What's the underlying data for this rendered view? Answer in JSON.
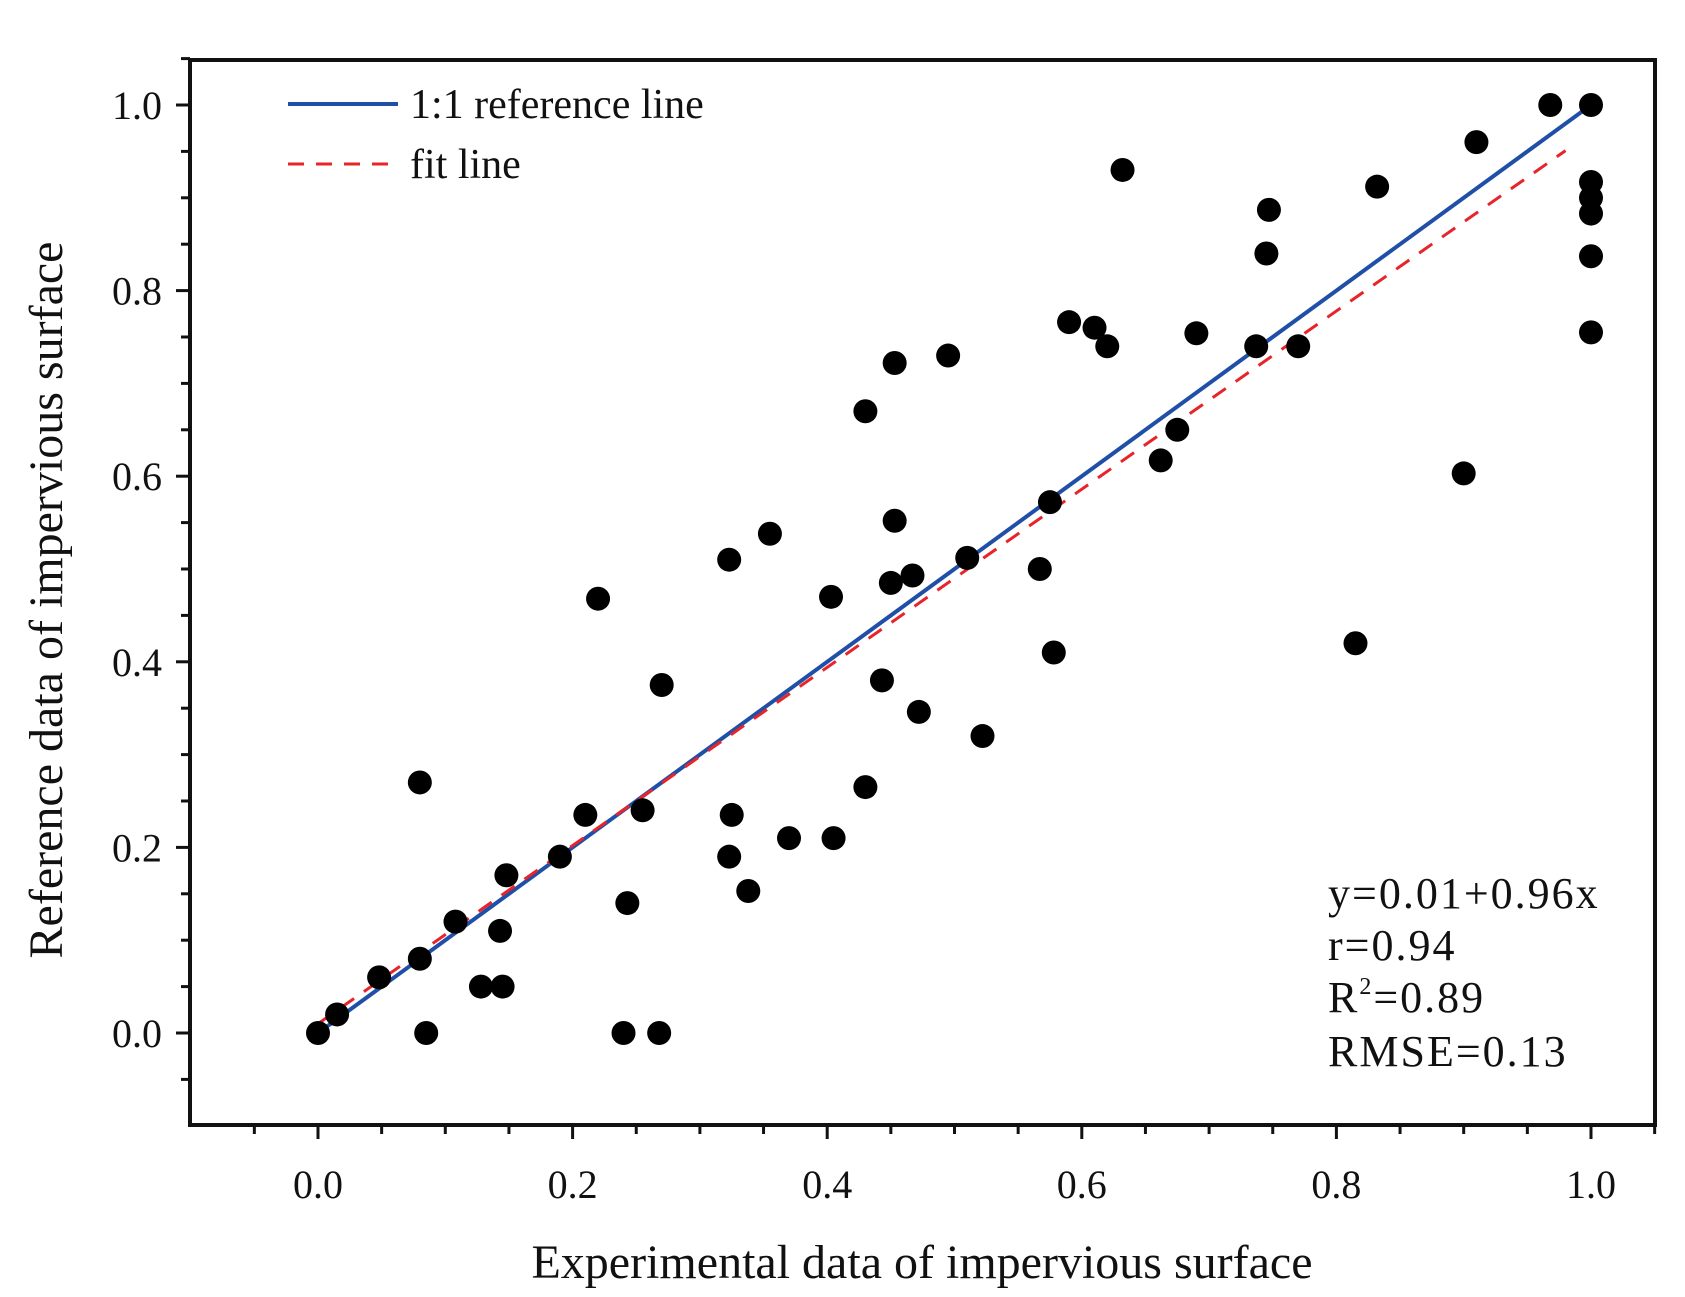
{
  "chart_data": {
    "type": "scatter",
    "xlabel": "Experimental data of impervious surface",
    "ylabel": "Reference data of impervious surface",
    "xlim": [
      -0.1,
      1.05
    ],
    "ylim": [
      -0.1,
      1.05
    ],
    "xticks": [
      "0.0",
      "0.2",
      "0.4",
      "0.6",
      "0.8",
      "1.0"
    ],
    "yticks": [
      "0.0",
      "0.2",
      "0.4",
      "0.6",
      "0.8",
      "1.0"
    ],
    "legend_position": "top-left",
    "legend": {
      "reference": "1:1 reference line",
      "fit": "fit line"
    },
    "colors": {
      "reference": "#1f4fa6",
      "fit": "#e8242b",
      "points": "#000000"
    },
    "reference_line": {
      "x": [
        0,
        1
      ],
      "y": [
        0,
        1
      ]
    },
    "fit_line": {
      "intercept": 0.01,
      "slope": 0.96,
      "x": [
        0,
        0.98
      ]
    },
    "stats": {
      "equation": "y=0.01+0.96x",
      "r": "r=0.94",
      "r2_prefix": "R",
      "r2_sup": "2",
      "r2_value": "=0.89",
      "rmse": "RMSE=0.13"
    },
    "points": [
      [
        0.0,
        0.0
      ],
      [
        0.015,
        0.02
      ],
      [
        0.048,
        0.06
      ],
      [
        0.08,
        0.08
      ],
      [
        0.085,
        0.0
      ],
      [
        0.08,
        0.27
      ],
      [
        0.108,
        0.12
      ],
      [
        0.128,
        0.05
      ],
      [
        0.143,
        0.11
      ],
      [
        0.145,
        0.05
      ],
      [
        0.148,
        0.17
      ],
      [
        0.19,
        0.19
      ],
      [
        0.21,
        0.235
      ],
      [
        0.22,
        0.468
      ],
      [
        0.24,
        0.0
      ],
      [
        0.243,
        0.14
      ],
      [
        0.255,
        0.24
      ],
      [
        0.268,
        0.0
      ],
      [
        0.27,
        0.375
      ],
      [
        0.323,
        0.51
      ],
      [
        0.323,
        0.19
      ],
      [
        0.325,
        0.235
      ],
      [
        0.338,
        0.153
      ],
      [
        0.355,
        0.538
      ],
      [
        0.37,
        0.21
      ],
      [
        0.403,
        0.47
      ],
      [
        0.405,
        0.21
      ],
      [
        0.43,
        0.67
      ],
      [
        0.43,
        0.265
      ],
      [
        0.443,
        0.38
      ],
      [
        0.45,
        0.485
      ],
      [
        0.453,
        0.552
      ],
      [
        0.453,
        0.722
      ],
      [
        0.467,
        0.493
      ],
      [
        0.472,
        0.346
      ],
      [
        0.495,
        0.73
      ],
      [
        0.51,
        0.512
      ],
      [
        0.522,
        0.32
      ],
      [
        0.567,
        0.5
      ],
      [
        0.575,
        0.572
      ],
      [
        0.578,
        0.41
      ],
      [
        0.59,
        0.766
      ],
      [
        0.61,
        0.76
      ],
      [
        0.62,
        0.74
      ],
      [
        0.632,
        0.93
      ],
      [
        0.662,
        0.617
      ],
      [
        0.675,
        0.65
      ],
      [
        0.69,
        0.754
      ],
      [
        0.737,
        0.74
      ],
      [
        0.745,
        0.84
      ],
      [
        0.747,
        0.887
      ],
      [
        0.77,
        0.74
      ],
      [
        0.815,
        0.42
      ],
      [
        0.832,
        0.912
      ],
      [
        0.9,
        0.603
      ],
      [
        0.91,
        0.96
      ],
      [
        0.968,
        1.0
      ],
      [
        1.0,
        1.0
      ],
      [
        1.0,
        0.917
      ],
      [
        1.0,
        0.9
      ],
      [
        1.0,
        0.883
      ],
      [
        1.0,
        0.837
      ],
      [
        1.0,
        0.755
      ]
    ]
  }
}
